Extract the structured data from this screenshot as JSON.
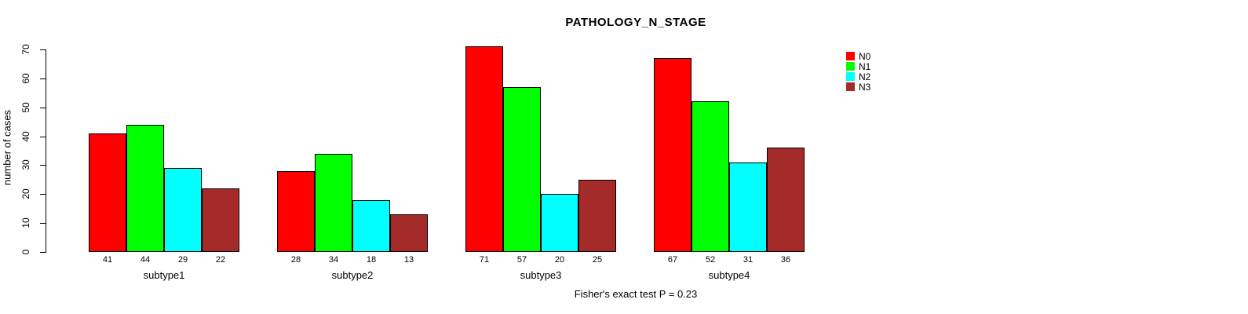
{
  "chart_data": {
    "type": "bar",
    "title": "PATHOLOGY_N_STAGE",
    "ylabel": "number of cases",
    "xlabel": "",
    "ylim": [
      0,
      70
    ],
    "yticks": [
      0,
      10,
      20,
      30,
      40,
      50,
      60,
      70
    ],
    "categories": [
      "subtype1",
      "subtype2",
      "subtype3",
      "subtype4"
    ],
    "series": [
      {
        "name": "N0",
        "color": "#FF0000",
        "values": [
          41,
          28,
          71,
          67
        ]
      },
      {
        "name": "N1",
        "color": "#00FF00",
        "values": [
          44,
          34,
          57,
          52
        ]
      },
      {
        "name": "N2",
        "color": "#00FFFF",
        "values": [
          29,
          18,
          20,
          31
        ]
      },
      {
        "name": "N3",
        "color": "#A52A2A",
        "values": [
          22,
          13,
          25,
          36
        ]
      }
    ],
    "bar_value_labels": true,
    "grid": false,
    "legend_position": "top-right",
    "annotation": "Fisher's exact test P = 0.23"
  }
}
